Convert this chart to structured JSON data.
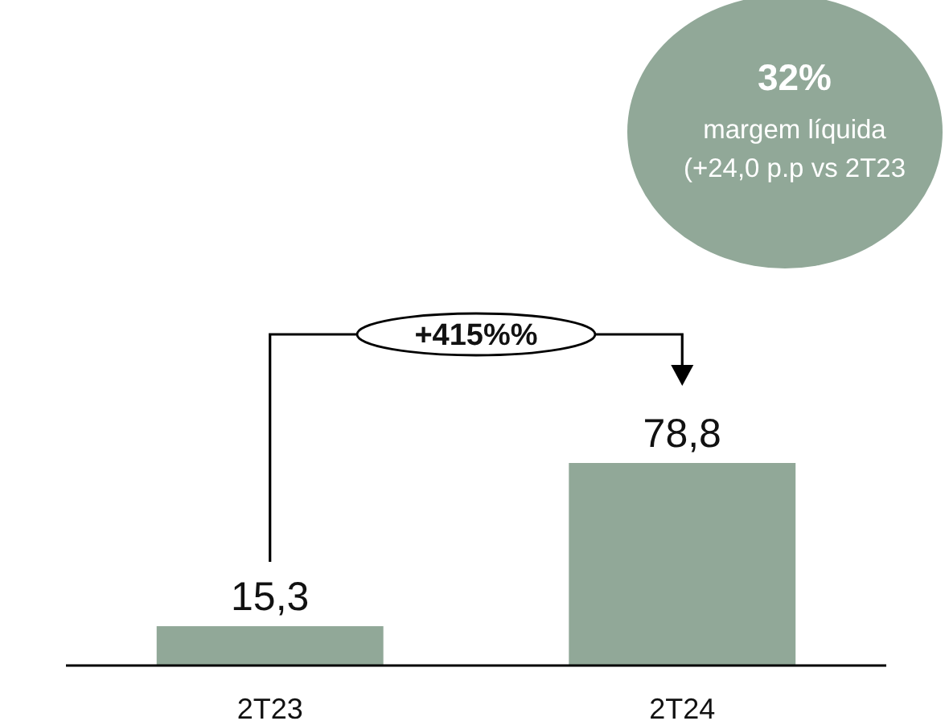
{
  "chart_data": {
    "type": "bar",
    "categories": [
      "2T23",
      "2T24"
    ],
    "values": [
      15.3,
      78.8
    ],
    "value_labels": [
      "15,3",
      "78,8"
    ],
    "color": "#91a898",
    "annotations": [
      "+415%%",
      "32%",
      "margem líquida",
      "(+24,0 p.p vs 2T23"
    ]
  }
}
